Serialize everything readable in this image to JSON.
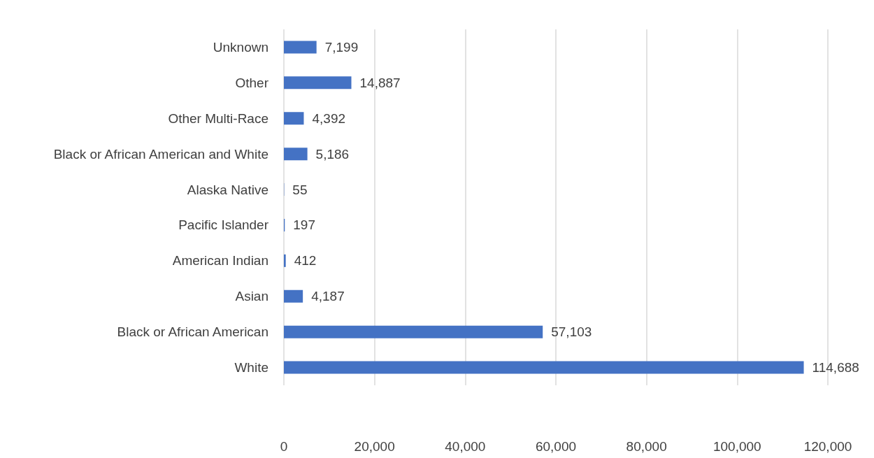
{
  "chart_data": {
    "type": "bar",
    "orientation": "horizontal",
    "categories": [
      "Unknown",
      "Other",
      "Other Multi-Race",
      "Black or African American and White",
      "Alaska Native",
      "Pacific Islander",
      "American Indian",
      "Asian",
      "Black or African American",
      "White"
    ],
    "values": [
      7199,
      14887,
      4392,
      5186,
      55,
      197,
      412,
      4187,
      57103,
      114688
    ],
    "value_labels": [
      "7,199",
      "14,887",
      "4,392",
      "5,186",
      "55",
      "197",
      "412",
      "4,187",
      "57,103",
      "114,688"
    ],
    "color": "#4472c4",
    "xlim": [
      0,
      120000
    ],
    "xticks": [
      0,
      {
        "value": 20000,
        "label": "20,000"
      },
      {
        "value": 40000,
        "label": "40,000"
      },
      {
        "value": 60000,
        "label": "60,000"
      },
      {
        "value": 80000,
        "label": "80,000"
      },
      {
        "value": 100000,
        "label": "100,000"
      },
      {
        "value": 120000,
        "label": "120,000"
      }
    ],
    "grid": "x"
  }
}
